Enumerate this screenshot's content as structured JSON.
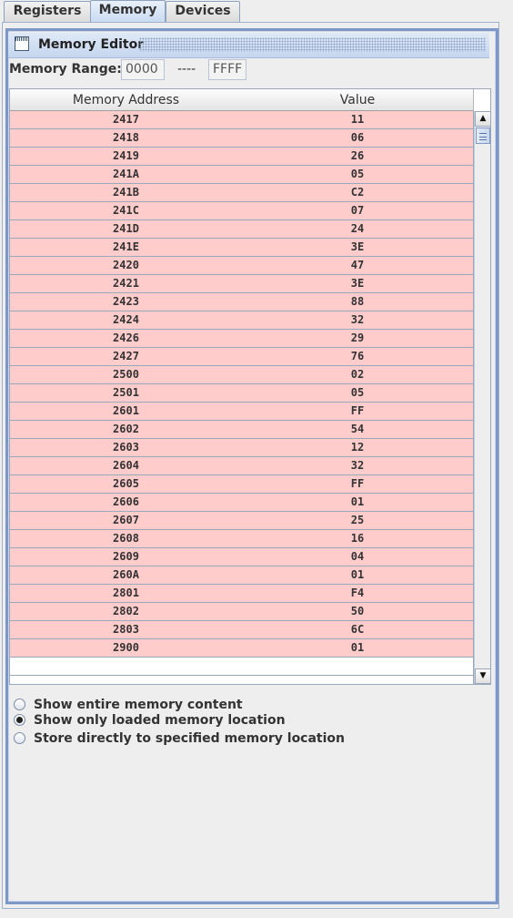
{
  "tabs": [
    {
      "label": "Registers",
      "active": false
    },
    {
      "label": "Memory",
      "active": true
    },
    {
      "label": "Devices",
      "active": false
    }
  ],
  "window": {
    "title": "Memory Editor",
    "icon": "window-icon"
  },
  "range": {
    "label": "Memory Range:",
    "start": "0000",
    "separator": "----",
    "end": "FFFF"
  },
  "table": {
    "headers": [
      "Memory Address",
      "Value"
    ],
    "row_color": "#ffcccc",
    "rows": [
      [
        "2417",
        "11"
      ],
      [
        "2418",
        "06"
      ],
      [
        "2419",
        "26"
      ],
      [
        "241A",
        "05"
      ],
      [
        "241B",
        "C2"
      ],
      [
        "241C",
        "07"
      ],
      [
        "241D",
        "24"
      ],
      [
        "241E",
        "3E"
      ],
      [
        "2420",
        "47"
      ],
      [
        "2421",
        "3E"
      ],
      [
        "2423",
        "88"
      ],
      [
        "2424",
        "32"
      ],
      [
        "2426",
        "29"
      ],
      [
        "2427",
        "76"
      ],
      [
        "2500",
        "02"
      ],
      [
        "2501",
        "05"
      ],
      [
        "2601",
        "FF"
      ],
      [
        "2602",
        "54"
      ],
      [
        "2603",
        "12"
      ],
      [
        "2604",
        "32"
      ],
      [
        "2605",
        "FF"
      ],
      [
        "2606",
        "01"
      ],
      [
        "2607",
        "25"
      ],
      [
        "2608",
        "16"
      ],
      [
        "2609",
        "04"
      ],
      [
        "260A",
        "01"
      ],
      [
        "2801",
        "F4"
      ],
      [
        "2802",
        "50"
      ],
      [
        "2803",
        "6C"
      ],
      [
        "2900",
        "01"
      ]
    ],
    "empty_rows": 2
  },
  "options": [
    {
      "label": "Show entire memory content",
      "checked": false
    },
    {
      "label": "Show only loaded memory location",
      "checked": true
    },
    {
      "label": "Store directly to specified memory location",
      "checked": false
    }
  ]
}
